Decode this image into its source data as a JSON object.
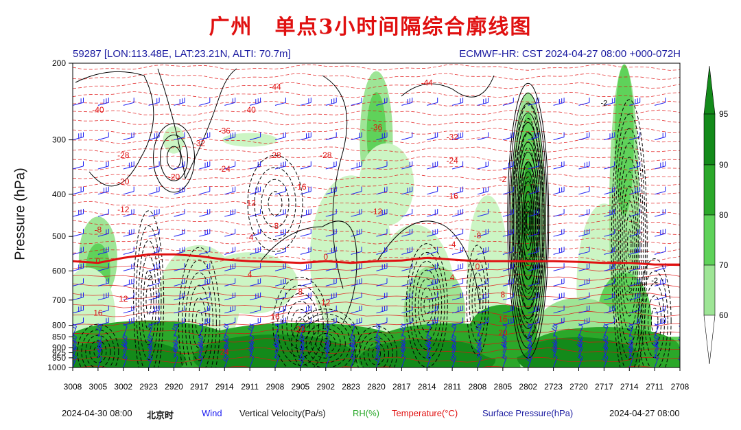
{
  "title": "广州　单点3小时间隔综合廓线图",
  "header": {
    "station": "59287 [LON:113.48E, LAT:23.21N, ALTI: 70.7m]",
    "model": "ECMWF-HR: CST 2024-04-27 08:00 +000-072H"
  },
  "footer": {
    "start_time": "2024-04-30 08:00",
    "timezone": "北京时",
    "end_time": "2024-04-27 08:00"
  },
  "legend": {
    "wind": "Wind",
    "vertical_velocity": "Vertical Velocity(Pa/s)",
    "rh": "RH(%)",
    "temperature": "Temperature(°C)",
    "surface_pressure": "Surface Pressure(hPa)"
  },
  "colors": {
    "title": "#e01010",
    "header": "#1a1aa0",
    "wind": "#1a1af0",
    "temperature": "#e01010",
    "freezing_level": "#e01010",
    "rh_60": "#ccf5c4",
    "rh_70": "#9ee596",
    "rh_80": "#5fd25a",
    "rh_90": "#2ba82a",
    "rh_95": "#138a1a"
  },
  "chart_data": {
    "type": "contour",
    "ylabel": "Pressure (hPa)",
    "xlabel": "",
    "y_axis": {
      "scale": "log",
      "reversed": true,
      "range": [
        1000,
        200
      ],
      "ticks": [
        200,
        300,
        400,
        500,
        600,
        700,
        800,
        850,
        900,
        925,
        950,
        1000
      ]
    },
    "x_axis": {
      "categories": [
        "3008",
        "3005",
        "3002",
        "2923",
        "2920",
        "2917",
        "2914",
        "2911",
        "2908",
        "2905",
        "2902",
        "2823",
        "2820",
        "2817",
        "2814",
        "2811",
        "2808",
        "2805",
        "2802",
        "2723",
        "2720",
        "2717",
        "2714",
        "2711",
        "2708"
      ]
    },
    "colorbar": {
      "variable": "RH(%)",
      "levels": [
        60,
        70,
        80,
        90,
        95
      ]
    },
    "freezing_level": {
      "label": "0",
      "pressure": [
        570,
        575,
        560,
        550,
        550,
        555,
        565,
        570,
        572,
        575,
        570,
        575,
        570,
        568,
        560,
        565,
        570,
        570,
        570,
        570,
        572,
        575,
        575,
        580,
        580
      ]
    },
    "temperature_labels": [
      {
        "text": "-40",
        "x": "3005",
        "p": 260
      },
      {
        "text": "-28",
        "x": "3002",
        "p": 330
      },
      {
        "text": "-20",
        "x": "3002",
        "p": 380
      },
      {
        "text": "-12",
        "x": "3002",
        "p": 440
      },
      {
        "text": "-8",
        "x": "3005",
        "p": 490
      },
      {
        "text": "-32",
        "x": "2917",
        "p": 310
      },
      {
        "text": "-20",
        "x": "2920",
        "p": 370
      },
      {
        "text": "-36",
        "x": "2914",
        "p": 290
      },
      {
        "text": "-24",
        "x": "2914",
        "p": 355
      },
      {
        "text": "-40",
        "x": "2911",
        "p": 260
      },
      {
        "text": "-44",
        "x": "2908",
        "p": 230
      },
      {
        "text": "-28",
        "x": "2908",
        "p": 330
      },
      {
        "text": "-16",
        "x": "2905",
        "p": 390
      },
      {
        "text": "-12",
        "x": "2911",
        "p": 425
      },
      {
        "text": "-8",
        "x": "2908",
        "p": 480
      },
      {
        "text": "-4",
        "x": "2911",
        "p": 510
      },
      {
        "text": "-28",
        "x": "2902",
        "p": 330
      },
      {
        "text": "-36",
        "x": "2820",
        "p": 285
      },
      {
        "text": "-12",
        "x": "2820",
        "p": 445
      },
      {
        "text": "-44",
        "x": "2814",
        "p": 225
      },
      {
        "text": "-32",
        "x": "2811",
        "p": 300
      },
      {
        "text": "-24",
        "x": "2811",
        "p": 340
      },
      {
        "text": "-16",
        "x": "2811",
        "p": 410
      },
      {
        "text": "-8",
        "x": "2808",
        "p": 505
      },
      {
        "text": "-4",
        "x": "2811",
        "p": 530
      },
      {
        "text": "-2",
        "x": "2805",
        "p": 375
      },
      {
        "text": "0",
        "x": "2902",
        "p": 565
      },
      {
        "text": "0",
        "x": "3005",
        "p": 578
      },
      {
        "text": "0",
        "x": "2808",
        "p": 595
      },
      {
        "text": "4",
        "x": "2911",
        "p": 620
      },
      {
        "text": "4",
        "x": "2811",
        "p": 630
      },
      {
        "text": "8",
        "x": "2905",
        "p": 680
      },
      {
        "text": "8",
        "x": "2805",
        "p": 690
      },
      {
        "text": "12",
        "x": "2902",
        "p": 720
      },
      {
        "text": "12",
        "x": "3002",
        "p": 705
      },
      {
        "text": "16",
        "x": "3005",
        "p": 760
      },
      {
        "text": "16",
        "x": "2908",
        "p": 775
      },
      {
        "text": "16",
        "x": "2805",
        "p": 785
      },
      {
        "text": "20",
        "x": "2905",
        "p": 830
      },
      {
        "text": "20",
        "x": "2805",
        "p": 845
      },
      {
        "text": "24",
        "x": "2914",
        "p": 935
      }
    ],
    "vertical_velocity_labels": [
      {
        "text": "-2",
        "x": "2923",
        "p": 630
      },
      {
        "text": "-2",
        "x": "2717",
        "p": 250
      },
      {
        "text": "-2",
        "x": "2714",
        "p": 675
      },
      {
        "text": "-2",
        "x": "2711",
        "p": 640
      }
    ]
  }
}
